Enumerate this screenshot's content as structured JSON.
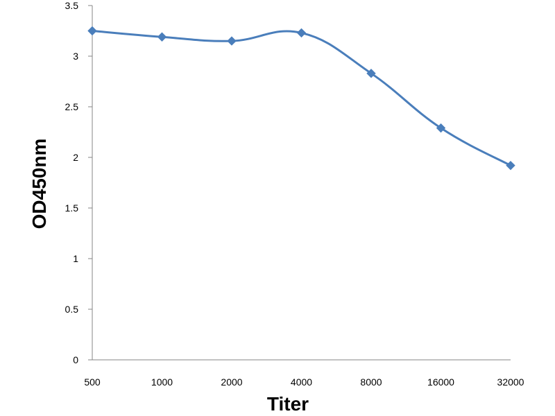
{
  "chart_data": {
    "type": "line",
    "title": "",
    "xlabel": "Titer",
    "ylabel": "OD450nm",
    "categories": [
      "500",
      "1000",
      "2000",
      "4000",
      "8000",
      "16000",
      "32000"
    ],
    "series": [
      {
        "values": [
          3.25,
          3.19,
          3.15,
          3.23,
          2.83,
          2.29,
          1.92
        ]
      }
    ],
    "ylim": [
      0,
      3.5
    ],
    "yticks": [
      "0",
      "0.5",
      "1",
      "1.5",
      "2",
      "2.5",
      "3",
      "3.5"
    ],
    "grid": false,
    "legend": "none",
    "line_color": "#4A7EBB",
    "marker": "diamond"
  }
}
